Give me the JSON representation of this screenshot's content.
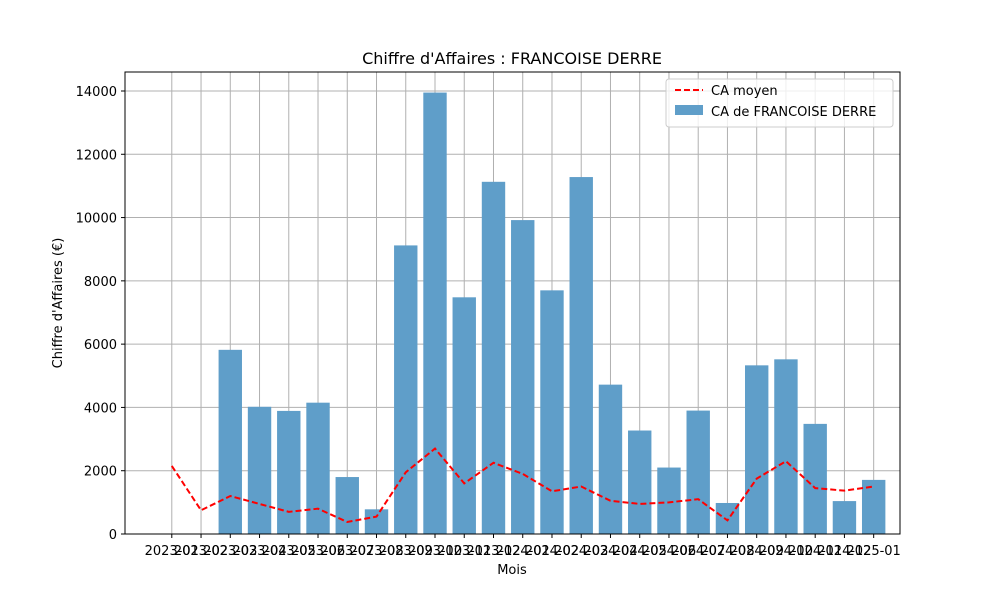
{
  "chart_data": {
    "type": "bar",
    "title": "Chiffre d'Affaires : FRANCOISE DERRE",
    "xlabel": "Mois",
    "ylabel": "Chiffre d'Affaires (€)",
    "ylim": [
      0,
      14600
    ],
    "yticks": [
      0,
      2000,
      4000,
      6000,
      8000,
      10000,
      12000,
      14000
    ],
    "grid": true,
    "legend_position": "top-right",
    "categories": [
      "2023-01",
      "2023-02",
      "2023-03",
      "2023-04",
      "2023-05",
      "2023-06",
      "2023-07",
      "2023-08",
      "2023-09",
      "2023-10",
      "2023-11",
      "2023-12",
      "2024-01",
      "2024-02",
      "2024-03",
      "2024-04",
      "2024-05",
      "2024-06",
      "2024-07",
      "2024-08",
      "2024-09",
      "2024-10",
      "2024-11",
      "2024-12",
      "2025-01"
    ],
    "series": [
      {
        "name": "CA moyen",
        "kind": "line",
        "style": "dashed",
        "color": "#ff0000",
        "values": [
          2150,
          750,
          1200,
          950,
          700,
          800,
          380,
          550,
          1950,
          2700,
          1600,
          2250,
          1900,
          1350,
          1500,
          1050,
          950,
          1000,
          1100,
          430,
          1750,
          2300,
          1450,
          1370,
          1500
        ]
      },
      {
        "name": "CA de FRANCOISE DERRE",
        "kind": "bar",
        "color": "#5f9ec9",
        "values": [
          0,
          0,
          5820,
          4020,
          3890,
          4150,
          1800,
          780,
          9120,
          13950,
          7480,
          11130,
          9920,
          7700,
          11280,
          4720,
          3270,
          2100,
          3900,
          980,
          5330,
          5520,
          3480,
          1040,
          1710
        ]
      }
    ]
  }
}
